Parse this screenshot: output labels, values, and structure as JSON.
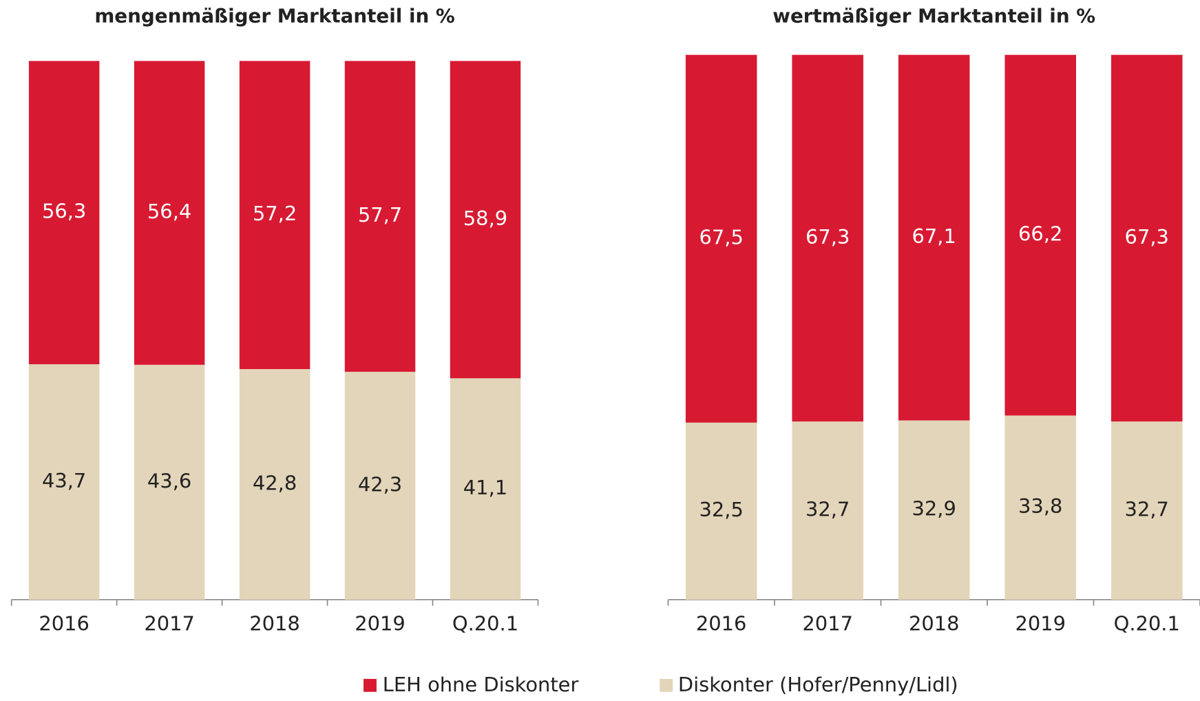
{
  "chart_data": [
    {
      "type": "stacked_bar",
      "title": "mengenmäßiger Marktanteil in %",
      "categories": [
        "2016",
        "2017",
        "2018",
        "2019",
        "Q.20.1"
      ],
      "ylim": [
        0,
        100
      ],
      "series": [
        {
          "name": "LEH ohne Diskonter",
          "color": "#d71a32",
          "values": [
            56.3,
            56.4,
            57.2,
            57.7,
            58.9
          ],
          "value_labels": [
            "56,3",
            "56,4",
            "57,2",
            "57,7",
            "58,9"
          ]
        },
        {
          "name": "Diskonter (Hofer/Penny/Lidl)",
          "color": "#e3d5b9",
          "values": [
            43.7,
            43.6,
            42.8,
            42.3,
            41.1
          ],
          "value_labels": [
            "43,7",
            "43,6",
            "42,8",
            "42,3",
            "41,1"
          ]
        }
      ]
    },
    {
      "type": "stacked_bar",
      "title": "wertmäßiger Marktanteil in %",
      "categories": [
        "2016",
        "2017",
        "2018",
        "2019",
        "Q.20.1"
      ],
      "ylim": [
        0,
        100
      ],
      "series": [
        {
          "color": "#d71a32",
          "values": [
            67.5,
            67.3,
            67.1,
            66.2,
            67.3
          ],
          "value_labels": [
            "67,5",
            "67,3",
            "67,1",
            "66,2",
            "67,3"
          ]
        },
        {
          "color": "#e3d5b9",
          "values": [
            32.5,
            32.7,
            32.9,
            33.8,
            32.7
          ],
          "value_labels": [
            "32,5",
            "32,7",
            "32,9",
            "33,8",
            "32,7"
          ]
        }
      ]
    }
  ]
}
